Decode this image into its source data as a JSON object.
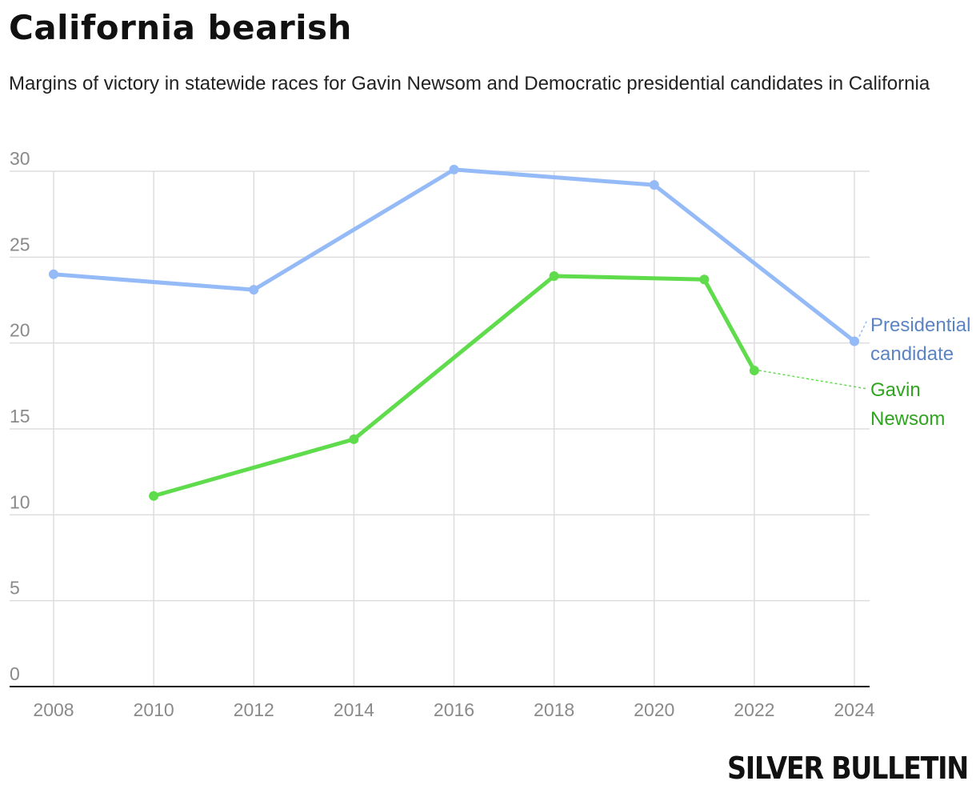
{
  "title": "California bearish",
  "subtitle": "Margins of victory in statewide races for Gavin Newsom and Democratic presidential candidates in California",
  "logo": "SILVER BULLETIN",
  "colors": {
    "presidential": "#94baf7",
    "presidential_label": "#5b84c4",
    "newsom": "#5fdc4b",
    "newsom_label": "#2fa51f",
    "grid": "#dddddd",
    "tick": "#8a8a8a",
    "axis": "#111111"
  },
  "chart_data": {
    "type": "line",
    "title": "California bearish",
    "xlabel": "",
    "ylabel": "",
    "xlim": [
      2008,
      2024
    ],
    "ylim": [
      0,
      30
    ],
    "x_ticks": [
      2008,
      2010,
      2012,
      2014,
      2016,
      2018,
      2020,
      2022,
      2024
    ],
    "y_ticks": [
      0,
      5,
      10,
      15,
      20,
      25,
      30
    ],
    "grid": true,
    "legend": "direct labels at right",
    "series": [
      {
        "name": "Presidential candidate",
        "color": "#94baf7",
        "points": [
          {
            "x": 2008,
            "y": 24.0
          },
          {
            "x": 2012,
            "y": 23.1
          },
          {
            "x": 2016,
            "y": 30.1
          },
          {
            "x": 2020,
            "y": 29.2
          },
          {
            "x": 2024,
            "y": 20.1
          }
        ]
      },
      {
        "name": "Gavin Newsom",
        "color": "#5fdc4b",
        "points": [
          {
            "x": 2010,
            "y": 11.1
          },
          {
            "x": 2014,
            "y": 14.4
          },
          {
            "x": 2018,
            "y": 23.9
          },
          {
            "x": 2021,
            "y": 23.7
          },
          {
            "x": 2022,
            "y": 18.4
          }
        ]
      }
    ],
    "labels": [
      {
        "series": 0,
        "lines": [
          "Presidential",
          "candidate"
        ]
      },
      {
        "series": 1,
        "lines": [
          "Gavin",
          "Newsom"
        ]
      }
    ]
  }
}
